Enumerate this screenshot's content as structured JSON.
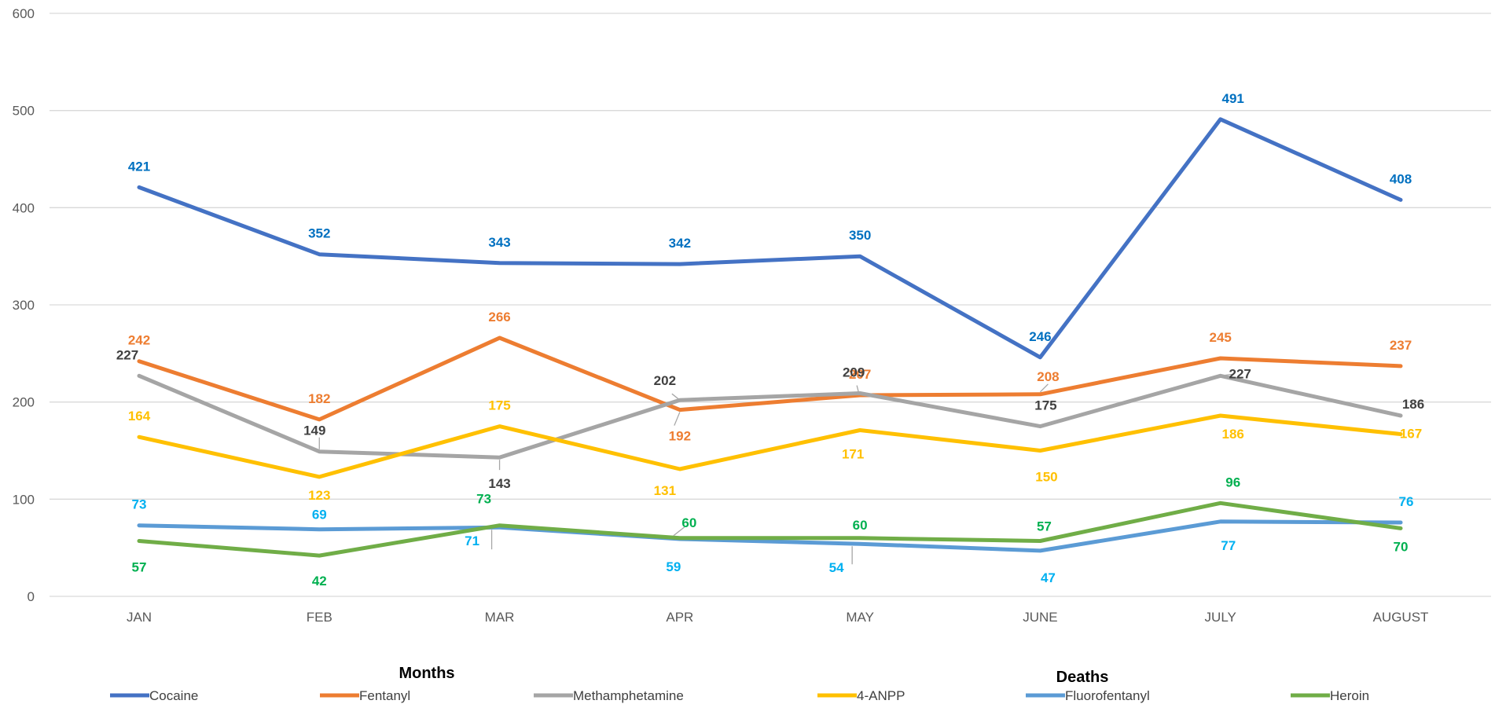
{
  "chart_data": {
    "type": "line",
    "title": "",
    "xlabel": "Months",
    "ylabel": "Deaths",
    "categories": [
      "JAN",
      "FEB",
      "MAR",
      "APR",
      "MAY",
      "JUNE",
      "JULY",
      "AUGUST"
    ],
    "ylim": [
      0,
      600
    ],
    "yticks": [
      "0",
      "100",
      "200",
      "300",
      "400",
      "500",
      "600"
    ],
    "grid": true,
    "legend_position": "bottom",
    "series": [
      {
        "name": "Cocaine",
        "color": "#4472C4",
        "label_color": "#0070C0",
        "values": [
          421,
          352,
          343,
          342,
          350,
          246,
          491,
          408
        ]
      },
      {
        "name": "Fentanyl",
        "color": "#ED7D31",
        "label_color": "#ED7D31",
        "values": [
          242,
          182,
          266,
          192,
          207,
          208,
          245,
          237
        ]
      },
      {
        "name": "Methamphetamine",
        "color": "#A5A5A5",
        "label_color": "#404040",
        "values": [
          227,
          149,
          143,
          202,
          209,
          175,
          227,
          186
        ]
      },
      {
        "name": "4-ANPP",
        "color": "#FFC000",
        "label_color": "#FFC000",
        "values": [
          164,
          123,
          175,
          131,
          171,
          150,
          186,
          167
        ]
      },
      {
        "name": "Fluorofentanyl",
        "color": "#5B9BD5",
        "label_color": "#00B0F0",
        "values": [
          73,
          69,
          71,
          59,
          54,
          47,
          77,
          76
        ]
      },
      {
        "name": "Heroin",
        "color": "#70AD47",
        "label_color": "#00B050",
        "values": [
          57,
          42,
          73,
          60,
          60,
          57,
          96,
          70
        ]
      }
    ]
  }
}
